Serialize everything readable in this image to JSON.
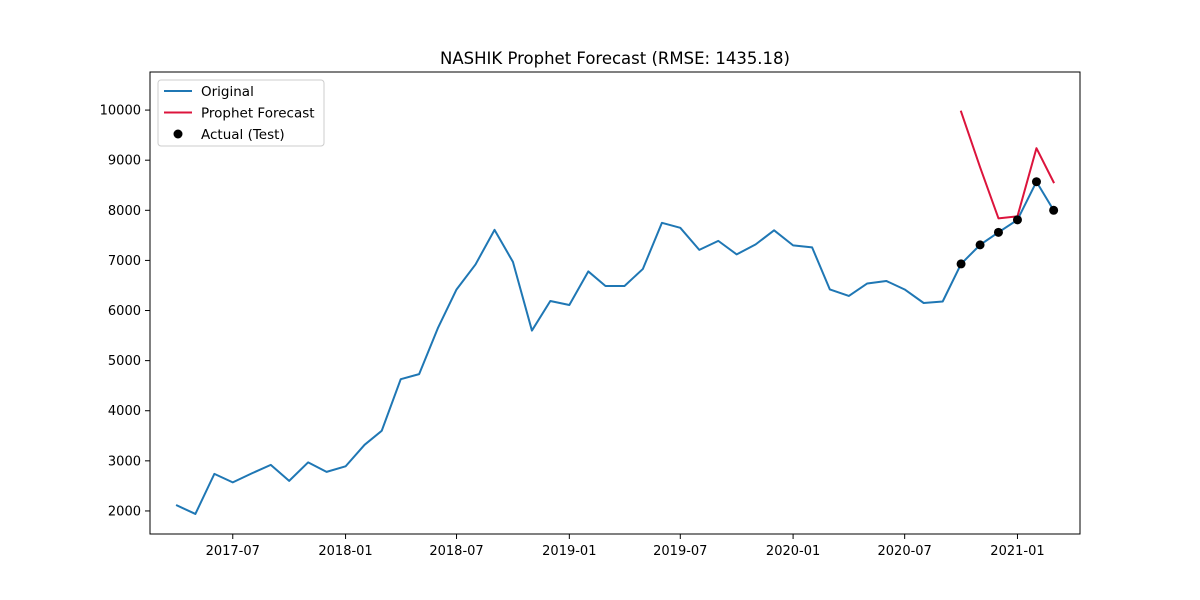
{
  "chart_data": {
    "type": "line",
    "title": "NASHIK Prophet Forecast (RMSE: 1435.18)",
    "xlabel": "",
    "ylabel": "",
    "xlim": [
      "2017-02-16",
      "2021-04-13"
    ],
    "ylim": [
      1540,
      10760
    ],
    "x_ticks": [
      "2017-07",
      "2018-01",
      "2018-07",
      "2019-01",
      "2019-07",
      "2020-01",
      "2020-07",
      "2021-01"
    ],
    "y_ticks": [
      2000,
      3000,
      4000,
      5000,
      6000,
      7000,
      8000,
      9000,
      10000
    ],
    "grid": false,
    "legend_position": "top-left",
    "series": [
      {
        "name": "Original",
        "style": "line",
        "color": "#1f77b4",
        "x": [
          "2017-04-01",
          "2017-05-01",
          "2017-06-01",
          "2017-07-01",
          "2017-08-01",
          "2017-09-01",
          "2017-10-01",
          "2017-11-01",
          "2017-12-01",
          "2018-01-01",
          "2018-02-01",
          "2018-03-01",
          "2018-04-01",
          "2018-05-01",
          "2018-06-01",
          "2018-07-01",
          "2018-08-01",
          "2018-09-01",
          "2018-10-01",
          "2018-11-01",
          "2018-12-01",
          "2019-01-01",
          "2019-02-01",
          "2019-03-01",
          "2019-04-01",
          "2019-05-01",
          "2019-06-01",
          "2019-07-01",
          "2019-08-01",
          "2019-09-01",
          "2019-10-01",
          "2019-11-01",
          "2019-12-01",
          "2020-01-01",
          "2020-02-01",
          "2020-03-01",
          "2020-04-01",
          "2020-05-01",
          "2020-06-01",
          "2020-07-01",
          "2020-08-01",
          "2020-09-01",
          "2020-10-01",
          "2020-11-01",
          "2020-12-01",
          "2021-01-01",
          "2021-02-01",
          "2021-03-01"
        ],
        "y": [
          2110,
          1940,
          2740,
          2570,
          2750,
          2920,
          2600,
          2970,
          2780,
          2890,
          3320,
          3600,
          4630,
          4730,
          5660,
          6420,
          6920,
          7610,
          6970,
          5600,
          6190,
          6110,
          6780,
          6490,
          6490,
          6830,
          7750,
          7650,
          7210,
          7390,
          7120,
          7320,
          7600,
          7300,
          7260,
          6420,
          6290,
          6540,
          6590,
          6420,
          6150,
          6180,
          6930,
          7310,
          7560,
          7810,
          8570,
          8000
        ]
      },
      {
        "name": "Prophet Forecast",
        "style": "line",
        "color": "#dc143c",
        "x": [
          "2020-10-01",
          "2020-11-01",
          "2020-12-01",
          "2021-01-01",
          "2021-02-01",
          "2021-03-01"
        ],
        "y": [
          9970,
          8860,
          7840,
          7880,
          9240,
          8560
        ]
      },
      {
        "name": "Actual (Test)",
        "style": "scatter",
        "color": "#000000",
        "x": [
          "2020-10-01",
          "2020-11-01",
          "2020-12-01",
          "2021-01-01",
          "2021-02-01",
          "2021-03-01"
        ],
        "y": [
          6930,
          7310,
          7560,
          7810,
          8570,
          8000
        ]
      }
    ]
  }
}
